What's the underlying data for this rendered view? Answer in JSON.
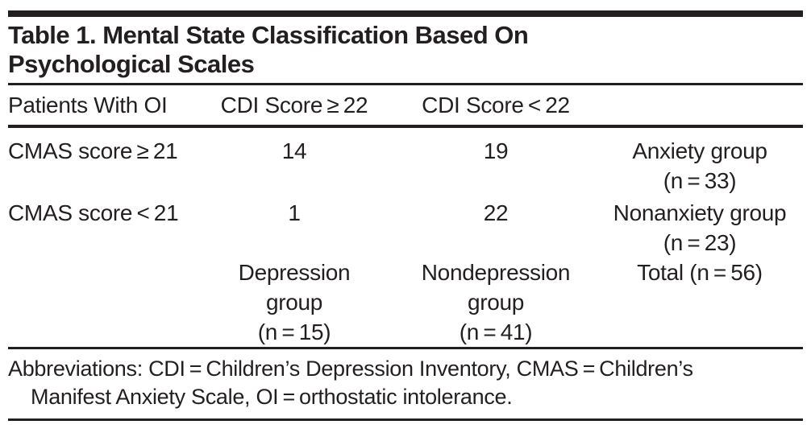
{
  "colors": {
    "ink": "#231f20",
    "background": "#ffffff"
  },
  "table": {
    "title_lines": [
      "Table 1. Mental State Classification Based On",
      "Psychological Scales"
    ],
    "header": [
      "Patients With OI",
      "CDI Score ≥ 22",
      "CDI Score < 22",
      ""
    ],
    "rows": [
      {
        "cells": [
          {
            "lines": [
              "CMAS score ≥ 21"
            ]
          },
          {
            "lines": [
              "14"
            ]
          },
          {
            "lines": [
              "19"
            ]
          },
          {
            "lines": [
              "Anxiety group",
              "(n = 33)"
            ]
          }
        ]
      },
      {
        "cells": [
          {
            "lines": [
              "CMAS score < 21"
            ]
          },
          {
            "lines": [
              "1"
            ]
          },
          {
            "lines": [
              "22"
            ]
          },
          {
            "lines": [
              "Nonanxiety group",
              "(n = 23)"
            ]
          }
        ]
      },
      {
        "cells": [
          {
            "lines": [
              ""
            ]
          },
          {
            "lines": [
              "Depression",
              "group",
              "(n = 15)"
            ]
          },
          {
            "lines": [
              "Nondepression",
              "group",
              "(n = 41)"
            ]
          },
          {
            "lines": [
              "Total (n = 56)"
            ]
          }
        ]
      }
    ],
    "footnote_lines": [
      "Abbreviations: CDI = Children’s Depression Inventory, CMAS = Children’s",
      "Manifest Anxiety Scale, OI = orthostatic intolerance."
    ]
  }
}
